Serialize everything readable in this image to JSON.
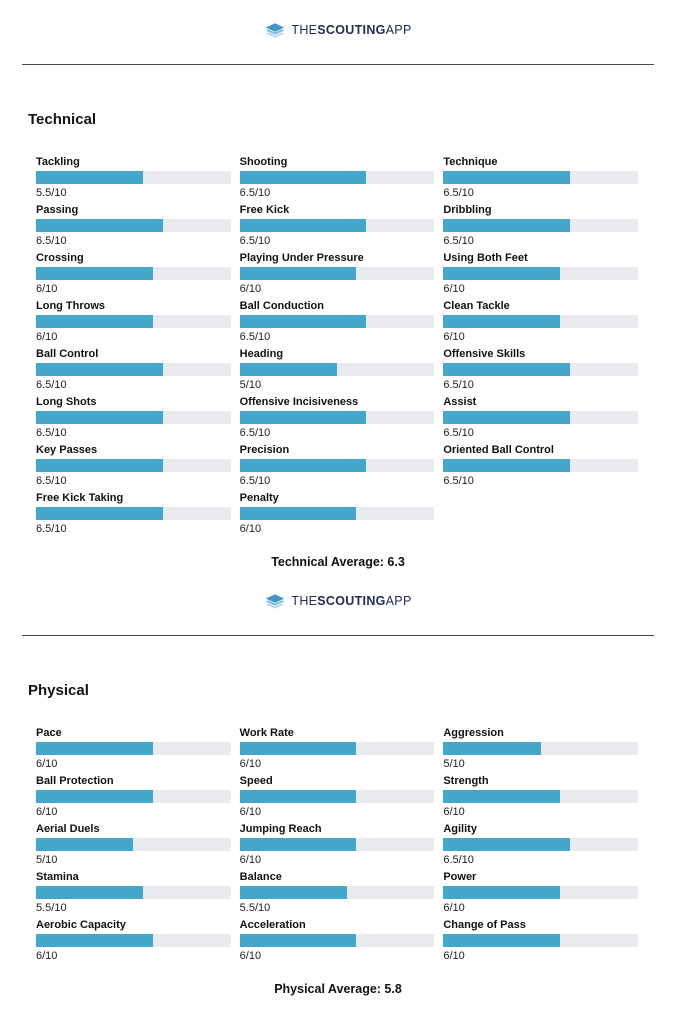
{
  "brand": {
    "the": "THE",
    "scouting": "SCOUTING",
    "app": "APP"
  },
  "colors": {
    "bar_fill": "#42a7c8",
    "bar_track": "#e9ebee",
    "brand_text": "#232c52",
    "icon_blue_top": "#3f96c9",
    "icon_blue_mid": "#7fb8dc",
    "icon_blue_bottom": "#bcd7ea",
    "divider": "#4a4a4a"
  },
  "sections": [
    {
      "id": "technical",
      "title": "Technical",
      "average_text": "Technical Average: 6.3",
      "columns": [
        [
          {
            "label": "Tackling",
            "value": 5.5,
            "display": "5.5/10"
          },
          {
            "label": "Passing",
            "value": 6.5,
            "display": "6.5/10"
          },
          {
            "label": "Crossing",
            "value": 6,
            "display": "6/10"
          },
          {
            "label": "Long Throws",
            "value": 6,
            "display": "6/10"
          },
          {
            "label": "Ball Control",
            "value": 6.5,
            "display": "6.5/10"
          },
          {
            "label": "Long Shots",
            "value": 6.5,
            "display": "6.5/10"
          },
          {
            "label": "Key Passes",
            "value": 6.5,
            "display": "6.5/10"
          },
          {
            "label": "Free Kick Taking",
            "value": 6.5,
            "display": "6.5/10"
          }
        ],
        [
          {
            "label": "Shooting",
            "value": 6.5,
            "display": "6.5/10"
          },
          {
            "label": "Free Kick",
            "value": 6.5,
            "display": "6.5/10"
          },
          {
            "label": "Playing Under Pressure",
            "value": 6,
            "display": "6/10"
          },
          {
            "label": "Ball Conduction",
            "value": 6.5,
            "display": "6.5/10"
          },
          {
            "label": "Heading",
            "value": 5,
            "display": "5/10"
          },
          {
            "label": "Offensive Incisiveness",
            "value": 6.5,
            "display": "6.5/10"
          },
          {
            "label": "Precision",
            "value": 6.5,
            "display": "6.5/10"
          },
          {
            "label": "Penalty",
            "value": 6,
            "display": "6/10"
          }
        ],
        [
          {
            "label": "Technique",
            "value": 6.5,
            "display": "6.5/10"
          },
          {
            "label": "Dribbling",
            "value": 6.5,
            "display": "6.5/10"
          },
          {
            "label": "Using Both Feet",
            "value": 6,
            "display": "6/10"
          },
          {
            "label": "Clean Tackle",
            "value": 6,
            "display": "6/10"
          },
          {
            "label": "Offensive Skills",
            "value": 6.5,
            "display": "6.5/10"
          },
          {
            "label": "Assist",
            "value": 6.5,
            "display": "6.5/10"
          },
          {
            "label": "Oriented Ball Control",
            "value": 6.5,
            "display": "6.5/10"
          }
        ]
      ]
    },
    {
      "id": "physical",
      "title": "Physical",
      "average_text": "Physical Average: 5.8",
      "columns": [
        [
          {
            "label": "Pace",
            "value": 6,
            "display": "6/10"
          },
          {
            "label": "Ball Protection",
            "value": 6,
            "display": "6/10"
          },
          {
            "label": "Aerial Duels",
            "value": 5,
            "display": "5/10"
          },
          {
            "label": "Stamina",
            "value": 5.5,
            "display": "5.5/10"
          },
          {
            "label": "Aerobic Capacity",
            "value": 6,
            "display": "6/10"
          }
        ],
        [
          {
            "label": "Work Rate",
            "value": 6,
            "display": "6/10"
          },
          {
            "label": "Speed",
            "value": 6,
            "display": "6/10"
          },
          {
            "label": "Jumping Reach",
            "value": 6,
            "display": "6/10"
          },
          {
            "label": "Balance",
            "value": 5.5,
            "display": "5.5/10"
          },
          {
            "label": "Acceleration",
            "value": 6,
            "display": "6/10"
          }
        ],
        [
          {
            "label": "Aggression",
            "value": 5,
            "display": "5/10"
          },
          {
            "label": "Strength",
            "value": 6,
            "display": "6/10"
          },
          {
            "label": "Agility",
            "value": 6.5,
            "display": "6.5/10"
          },
          {
            "label": "Power",
            "value": 6,
            "display": "6/10"
          },
          {
            "label": "Change of Pass",
            "value": 6,
            "display": "6/10"
          }
        ]
      ]
    }
  ],
  "chart_data": [
    {
      "type": "bar",
      "title": "Technical",
      "categories": [
        "Tackling",
        "Passing",
        "Crossing",
        "Long Throws",
        "Ball Control",
        "Long Shots",
        "Key Passes",
        "Free Kick Taking",
        "Shooting",
        "Free Kick",
        "Playing Under Pressure",
        "Ball Conduction",
        "Heading",
        "Offensive Incisiveness",
        "Precision",
        "Penalty",
        "Technique",
        "Dribbling",
        "Using Both Feet",
        "Clean Tackle",
        "Offensive Skills",
        "Assist",
        "Oriented Ball Control"
      ],
      "values": [
        5.5,
        6.5,
        6,
        6,
        6.5,
        6.5,
        6.5,
        6.5,
        6.5,
        6.5,
        6,
        6.5,
        5,
        6.5,
        6.5,
        6,
        6.5,
        6.5,
        6,
        6,
        6.5,
        6.5,
        6.5
      ],
      "xlabel": "",
      "ylabel": "",
      "ylim": [
        0,
        10
      ],
      "average": 6.3
    },
    {
      "type": "bar",
      "title": "Physical",
      "categories": [
        "Pace",
        "Ball Protection",
        "Aerial Duels",
        "Stamina",
        "Aerobic Capacity",
        "Work Rate",
        "Speed",
        "Jumping Reach",
        "Balance",
        "Acceleration",
        "Aggression",
        "Strength",
        "Agility",
        "Power",
        "Change of Pass"
      ],
      "values": [
        6,
        6,
        5,
        5.5,
        6,
        6,
        6,
        6,
        5.5,
        6,
        5,
        6,
        6.5,
        6,
        6
      ],
      "xlabel": "",
      "ylabel": "",
      "ylim": [
        0,
        10
      ],
      "average": 5.8
    }
  ]
}
